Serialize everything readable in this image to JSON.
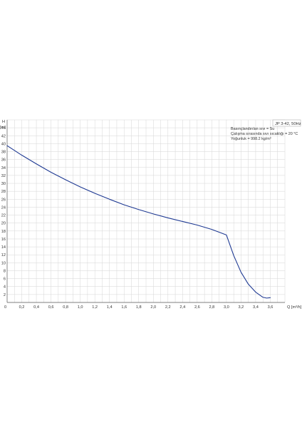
{
  "chart_data": {
    "type": "line",
    "title": "JP 3-42, 50Hz",
    "xlabel": "Q [m³/h]",
    "ylabel": "H [m]",
    "xlim": [
      0,
      3.8
    ],
    "ylim": [
      0,
      46
    ],
    "x_ticks": [
      "0",
      "0,2",
      "0,4",
      "0,6",
      "0,8",
      "1,0",
      "1,2",
      "1,4",
      "1,6",
      "1,8",
      "2,0",
      "2,2",
      "2,4",
      "2,6",
      "2,8",
      "3,0",
      "3,2",
      "3,4",
      "3,6"
    ],
    "y_ticks": [
      "2",
      "4",
      "6",
      "8",
      "10",
      "12",
      "14",
      "16",
      "18",
      "20",
      "22",
      "24",
      "26",
      "28",
      "30",
      "32",
      "34",
      "36",
      "38",
      "40",
      "42",
      "44"
    ],
    "y_axis_top_label": "H",
    "y_unit_label": "[m]",
    "x_zero_label": "0",
    "grid": true,
    "annotations": [
      "Basınçlandırılan sıvı = Su",
      "Çalışma sırasında sıvı sıcaklığı = 20 °C",
      "Yoğunluk = 998.2 kg/m³"
    ],
    "series": [
      {
        "color": "#1f3a93",
        "x": [
          0,
          0.2,
          0.4,
          0.6,
          0.8,
          1.0,
          1.2,
          1.4,
          1.6,
          1.8,
          2.0,
          2.2,
          2.4,
          2.6,
          2.8,
          3.0,
          3.1,
          3.2,
          3.3,
          3.4,
          3.5,
          3.55,
          3.6
        ],
        "y": [
          39.5,
          37.1,
          34.9,
          32.8,
          30.9,
          29.1,
          27.5,
          26.0,
          24.6,
          23.4,
          22.3,
          21.3,
          20.4,
          19.5,
          18.4,
          17.0,
          11.8,
          7.6,
          4.6,
          2.6,
          1.3,
          1.1,
          1.2
        ]
      }
    ]
  }
}
